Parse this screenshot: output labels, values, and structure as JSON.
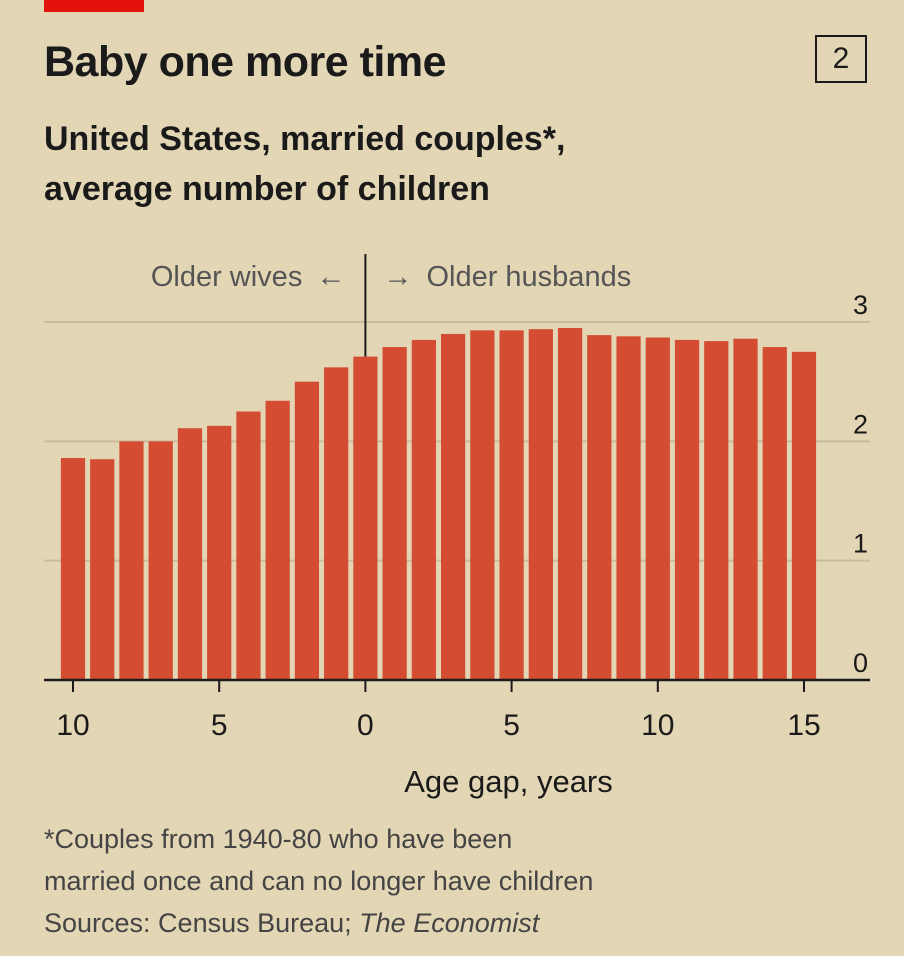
{
  "header": {
    "title": "Baby one more time",
    "chart_number": "2",
    "subtitle_line1": "United States, married couples*,",
    "subtitle_line2": "average number of children"
  },
  "annotations": {
    "left": "Older wives",
    "right": "Older husbands",
    "arrow_left": "←",
    "arrow_right": "→"
  },
  "footnotes": {
    "note_line1": "*Couples from 1940-80 who have been",
    "note_line2": "married once and can no longer have children",
    "sources_prefix": "Sources: Census Bureau; ",
    "sources_italic": "The Economist"
  },
  "colors": {
    "bar": "#d44d32",
    "background": "#e3d6b5",
    "grid": "#c9bc9c",
    "brand": "#e3120b"
  },
  "chart_data": {
    "type": "bar",
    "title": "Baby one more time",
    "subtitle": "United States, married couples*, average number of children",
    "xlabel": "Age gap, years",
    "ylabel": "",
    "x": [
      -10,
      -9,
      -8,
      -7,
      -6,
      -5,
      -4,
      -3,
      -2,
      -1,
      0,
      1,
      2,
      3,
      4,
      5,
      6,
      7,
      8,
      9,
      10,
      11,
      12,
      13,
      14,
      15
    ],
    "values": [
      1.86,
      1.85,
      2.0,
      2.0,
      2.11,
      2.13,
      2.25,
      2.34,
      2.5,
      2.62,
      2.71,
      2.79,
      2.85,
      2.9,
      2.93,
      2.93,
      2.94,
      2.95,
      2.89,
      2.88,
      2.87,
      2.85,
      2.84,
      2.86,
      2.79,
      2.75
    ],
    "xticks": [
      -10,
      -5,
      0,
      5,
      10,
      15
    ],
    "xtick_labels": [
      "10",
      "5",
      "0",
      "5",
      "10",
      "15"
    ],
    "ylim": [
      0,
      3
    ],
    "yticks": [
      0,
      1,
      2,
      3
    ],
    "ytick_labels": [
      "0",
      "1",
      "2",
      "3"
    ],
    "grid": true
  }
}
